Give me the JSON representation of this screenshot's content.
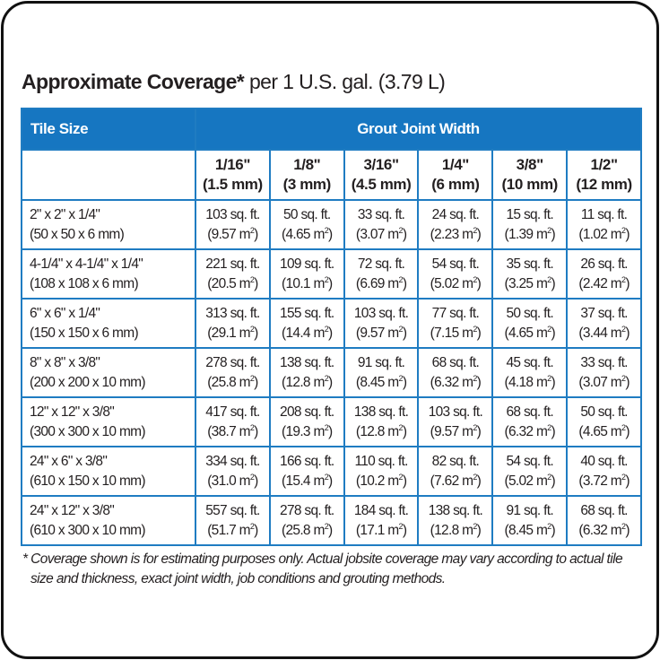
{
  "title": {
    "bold": "Approximate Coverage*",
    "normal": " per 1 U.S. gal. (3.79 L)"
  },
  "table": {
    "tile_header": "Tile Size",
    "group_header": "Grout Joint Width",
    "columns": [
      {
        "in": "1/16\"",
        "mm": "(1.5 mm)"
      },
      {
        "in": "1/8\"",
        "mm": "(3 mm)"
      },
      {
        "in": "3/16\"",
        "mm": "(4.5 mm)"
      },
      {
        "in": "1/4\"",
        "mm": "(6 mm)"
      },
      {
        "in": "3/8\"",
        "mm": "(10 mm)"
      },
      {
        "in": "1/2\"",
        "mm": "(12 mm)"
      }
    ],
    "sqft_unit": "sq. ft.",
    "m2_unit": "m",
    "m2_exp": "2",
    "rows": [
      {
        "tile_in": "2\" x 2\" x 1/4\"",
        "tile_mm": "(50 x 50 x 6 mm)",
        "cells": [
          {
            "sqft": "103",
            "m2": "9.57"
          },
          {
            "sqft": "50",
            "m2": "4.65"
          },
          {
            "sqft": "33",
            "m2": "3.07"
          },
          {
            "sqft": "24",
            "m2": "2.23"
          },
          {
            "sqft": "15",
            "m2": "1.39"
          },
          {
            "sqft": "11",
            "m2": "1.02"
          }
        ]
      },
      {
        "tile_in": "4-1/4\" x 4-1/4\" x 1/4\"",
        "tile_mm": "(108 x 108 x 6 mm)",
        "cells": [
          {
            "sqft": "221",
            "m2": "20.5"
          },
          {
            "sqft": "109",
            "m2": "10.1"
          },
          {
            "sqft": "72",
            "m2": "6.69"
          },
          {
            "sqft": "54",
            "m2": "5.02"
          },
          {
            "sqft": "35",
            "m2": "3.25"
          },
          {
            "sqft": "26",
            "m2": "2.42"
          }
        ]
      },
      {
        "tile_in": "6\" x 6\" x 1/4\"",
        "tile_mm": "(150 x 150 x 6 mm)",
        "cells": [
          {
            "sqft": "313",
            "m2": "29.1"
          },
          {
            "sqft": "155",
            "m2": "14.4"
          },
          {
            "sqft": "103",
            "m2": "9.57"
          },
          {
            "sqft": "77",
            "m2": "7.15"
          },
          {
            "sqft": "50",
            "m2": "4.65"
          },
          {
            "sqft": "37",
            "m2": "3.44"
          }
        ]
      },
      {
        "tile_in": "8\" x 8\" x 3/8\"",
        "tile_mm": "(200 x 200 x 10 mm)",
        "cells": [
          {
            "sqft": "278",
            "m2": "25.8"
          },
          {
            "sqft": "138",
            "m2": "12.8"
          },
          {
            "sqft": "91",
            "m2": "8.45"
          },
          {
            "sqft": "68",
            "m2": "6.32"
          },
          {
            "sqft": "45",
            "m2": "4.18"
          },
          {
            "sqft": "33",
            "m2": "3.07"
          }
        ]
      },
      {
        "tile_in": "12\" x 12\" x 3/8\"",
        "tile_mm": "(300 x 300 x 10 mm)",
        "cells": [
          {
            "sqft": "417",
            "m2": "38.7"
          },
          {
            "sqft": "208",
            "m2": "19.3"
          },
          {
            "sqft": "138",
            "m2": "12.8"
          },
          {
            "sqft": "103",
            "m2": "9.57"
          },
          {
            "sqft": "68",
            "m2": "6.32"
          },
          {
            "sqft": "50",
            "m2": "4.65"
          }
        ]
      },
      {
        "tile_in": "24\" x 6\" x 3/8\"",
        "tile_mm": "(610 x 150 x 10 mm)",
        "cells": [
          {
            "sqft": "334",
            "m2": "31.0"
          },
          {
            "sqft": "166",
            "m2": "15.4"
          },
          {
            "sqft": "110",
            "m2": "10.2"
          },
          {
            "sqft": "82",
            "m2": "7.62"
          },
          {
            "sqft": "54",
            "m2": "5.02"
          },
          {
            "sqft": "40",
            "m2": "3.72"
          }
        ]
      },
      {
        "tile_in": "24\" x 12\" x 3/8\"",
        "tile_mm": "(610 x 300 x 10 mm)",
        "cells": [
          {
            "sqft": "557",
            "m2": "51.7"
          },
          {
            "sqft": "278",
            "m2": "25.8"
          },
          {
            "sqft": "184",
            "m2": "17.1"
          },
          {
            "sqft": "138",
            "m2": "12.8"
          },
          {
            "sqft": "91",
            "m2": "8.45"
          },
          {
            "sqft": "68",
            "m2": "6.32"
          }
        ]
      }
    ]
  },
  "footnote": {
    "line1": "* Coverage shown is for estimating purposes only. Actual jobsite coverage may vary according to actual tile",
    "line2": "size and thickness, exact joint width, job conditions and grouting methods."
  },
  "colors": {
    "header_blue": "#1676c1",
    "border_blue": "#1f7cc2"
  }
}
